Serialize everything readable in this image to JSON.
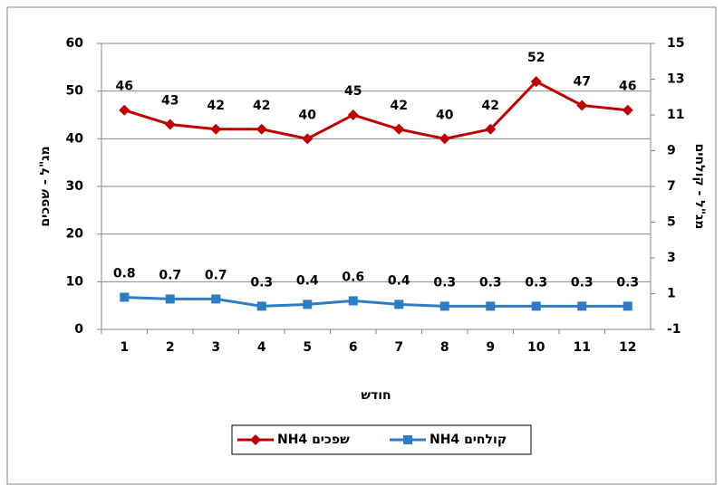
{
  "chart_data": {
    "type": "line",
    "x_label": "חודש",
    "y_label": "מג\"ל - שפכים",
    "y2_label": "מג\"ל - קולחים",
    "categories": [
      "1",
      "2",
      "3",
      "4",
      "5",
      "6",
      "7",
      "8",
      "9",
      "10",
      "11",
      "12"
    ],
    "series": [
      {
        "name": "NH4 שפכים",
        "color": "#c00000",
        "marker": "diamond",
        "values": [
          46,
          43,
          42,
          42,
          40,
          45,
          42,
          40,
          42,
          52,
          47,
          46
        ]
      },
      {
        "name": "NH4 קולחים",
        "color": "#2e7dc4",
        "marker": "square",
        "axis": "y2",
        "values": [
          0.8,
          0.7,
          0.7,
          0.3,
          0.4,
          0.6,
          0.4,
          0.3,
          0.3,
          0.3,
          0.3,
          0.3
        ]
      }
    ],
    "ylim": [
      0,
      60
    ],
    "yticks": [
      0,
      10,
      20,
      30,
      40,
      50,
      60
    ],
    "y2lim": [
      -1,
      15
    ],
    "y2ticks": [
      -1,
      1,
      3,
      5,
      7,
      9,
      11,
      13,
      15
    ],
    "grid": true,
    "legend": "bottom"
  }
}
